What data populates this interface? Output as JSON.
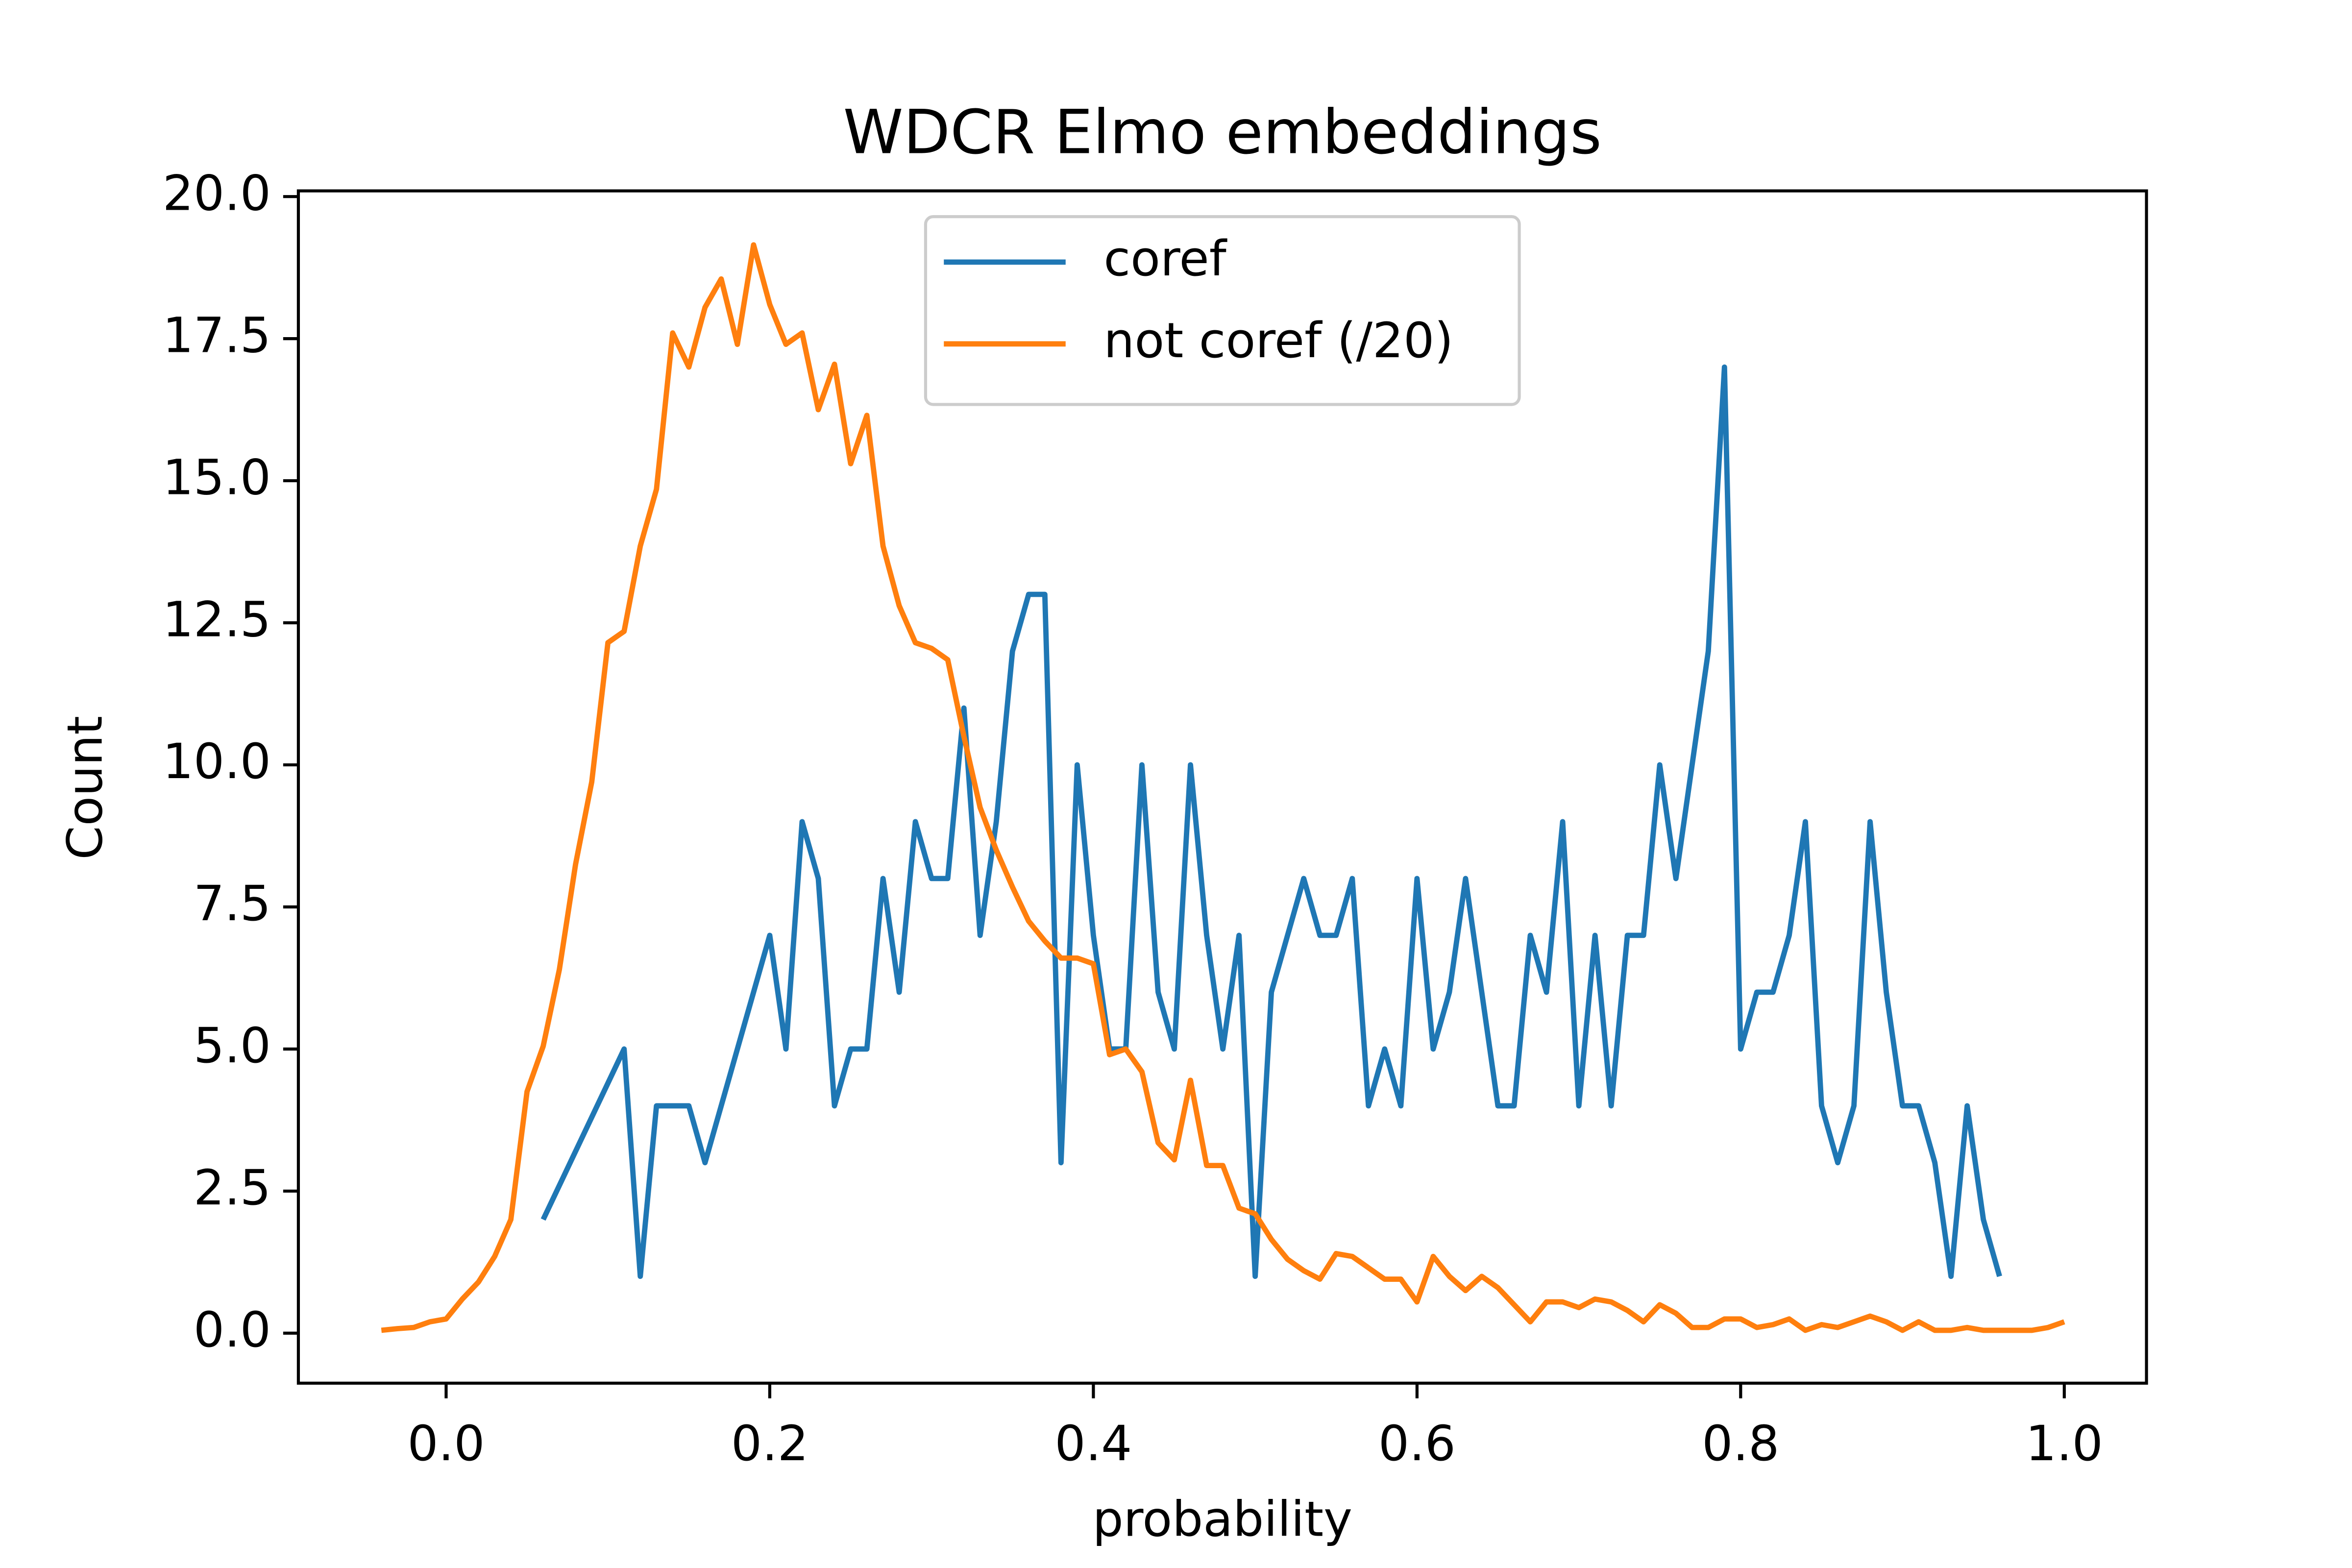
{
  "chart_data": {
    "type": "line",
    "title": "WDCR Elmo embeddings",
    "x_label": "probability",
    "y_label": "Count",
    "xlim": [
      -0.0913,
      1.0508
    ],
    "ylim": [
      -0.88,
      20.1
    ],
    "xticks": [
      {
        "value": 0,
        "label": "0.0"
      },
      0.2,
      0.4,
      0.6,
      0.8,
      {
        "value": 1,
        "label": "1.0"
      }
    ],
    "yticks": [
      {
        "value": 0,
        "label": "0.0"
      },
      2.5,
      {
        "value": 5,
        "label": "5.0"
      },
      7.5,
      {
        "value": 10,
        "label": "10.0"
      },
      12.5,
      {
        "value": 15,
        "label": "15.0"
      },
      17.5,
      {
        "value": 20,
        "label": "20.0"
      }
    ],
    "grid": false,
    "legend": "upper center",
    "series": [
      {
        "name": "coref",
        "color": "#1f77b4",
        "x": [
          0.06,
          0.11,
          0.12,
          0.13,
          0.15,
          0.16,
          0.2,
          0.21,
          0.22,
          0.23,
          0.24,
          0.25,
          0.26,
          0.27,
          0.28,
          0.29,
          0.3,
          0.31,
          0.32,
          0.33,
          0.34,
          0.35,
          0.36,
          0.37,
          0.38,
          0.39,
          0.4,
          0.41,
          0.42,
          0.43,
          0.44,
          0.45,
          0.46,
          0.47,
          0.48,
          0.49,
          0.5,
          0.51,
          0.52,
          0.53,
          0.54,
          0.55,
          0.56,
          0.57,
          0.58,
          0.59,
          0.6,
          0.61,
          0.62,
          0.63,
          0.64,
          0.65,
          0.66,
          0.67,
          0.68,
          0.69,
          0.7,
          0.71,
          0.72,
          0.73,
          0.74,
          0.75,
          0.76,
          0.78,
          0.79,
          0.8,
          0.81,
          0.82,
          0.83,
          0.84,
          0.85,
          0.86,
          0.87,
          0.88,
          0.89,
          0.9,
          0.91,
          0.92,
          0.93,
          0.94,
          0.95,
          0.96
        ],
        "values": [
          2,
          5,
          1,
          4,
          4,
          3,
          7,
          5,
          9,
          8,
          4,
          5,
          5,
          8,
          6,
          9,
          8,
          8,
          11,
          7,
          9,
          12,
          13,
          13,
          3,
          10,
          7,
          5,
          5,
          10,
          6,
          5,
          10,
          7,
          5,
          7,
          1,
          6,
          7,
          8,
          7,
          7,
          8,
          4,
          5,
          4,
          8,
          5,
          6,
          8,
          6,
          4,
          4,
          7,
          6,
          9,
          4,
          7,
          4,
          7,
          7,
          10,
          8,
          12,
          17,
          5,
          6,
          6,
          7,
          9,
          4,
          3,
          4,
          9,
          6,
          4,
          4,
          3,
          1,
          4,
          2,
          1
        ]
      },
      {
        "name": "not coref (/20)",
        "color": "#ff7f0e",
        "x": [
          -0.04,
          -0.03,
          -0.02,
          -0.01,
          0,
          0.01,
          0.02,
          0.03,
          0.04,
          0.05,
          0.06,
          0.07,
          0.08,
          0.09,
          0.1,
          0.11,
          0.12,
          0.13,
          0.14,
          0.15,
          0.16,
          0.17,
          0.18,
          0.19,
          0.2,
          0.21,
          0.22,
          0.23,
          0.24,
          0.25,
          0.26,
          0.27,
          0.28,
          0.29,
          0.3,
          0.31,
          0.32,
          0.33,
          0.34,
          0.35,
          0.36,
          0.37,
          0.38,
          0.39,
          0.4,
          0.41,
          0.42,
          0.43,
          0.44,
          0.45,
          0.46,
          0.47,
          0.48,
          0.49,
          0.5,
          0.51,
          0.52,
          0.53,
          0.54,
          0.55,
          0.56,
          0.57,
          0.58,
          0.59,
          0.6,
          0.61,
          0.62,
          0.63,
          0.64,
          0.65,
          0.66,
          0.67,
          0.68,
          0.69,
          0.7,
          0.71,
          0.72,
          0.73,
          0.74,
          0.75,
          0.76,
          0.77,
          0.78,
          0.79,
          0.8,
          0.81,
          0.82,
          0.83,
          0.84,
          0.85,
          0.86,
          0.87,
          0.88,
          0.89,
          0.9,
          0.91,
          0.92,
          0.93,
          0.94,
          0.95,
          0.96,
          0.97,
          0.98,
          0.99,
          1
        ],
        "values": [
          0.05,
          0.08,
          0.1,
          0.2,
          0.25,
          0.6,
          0.9,
          1.35,
          2,
          4.25,
          5.05,
          6.4,
          8.25,
          9.7,
          12.15,
          12.35,
          13.85,
          14.85,
          17.6,
          17,
          18.05,
          18.55,
          17.4,
          19.15,
          18.1,
          17.4,
          17.6,
          16.25,
          17.05,
          15.3,
          16.15,
          13.85,
          12.8,
          12.15,
          12.05,
          11.85,
          10.5,
          9.25,
          8.5,
          7.85,
          7.25,
          6.9,
          6.6,
          6.6,
          6.5,
          4.9,
          5,
          4.6,
          3.35,
          3.05,
          4.45,
          2.95,
          2.95,
          2.2,
          2.1,
          1.65,
          1.3,
          1.1,
          0.95,
          1.4,
          1.35,
          1.15,
          0.95,
          0.95,
          0.55,
          1.35,
          1,
          0.75,
          1,
          0.8,
          0.5,
          0.2,
          0.55,
          0.55,
          0.45,
          0.6,
          0.55,
          0.4,
          0.2,
          0.5,
          0.35,
          0.1,
          0.1,
          0.25,
          0.25,
          0.1,
          0.15,
          0.25,
          0.05,
          0.15,
          0.1,
          0.2,
          0.3,
          0.2,
          0.05,
          0.2,
          0.05,
          0.05,
          0.1,
          0.05,
          0.05,
          0.05,
          0.05,
          0.1,
          0.2
        ]
      }
    ]
  }
}
